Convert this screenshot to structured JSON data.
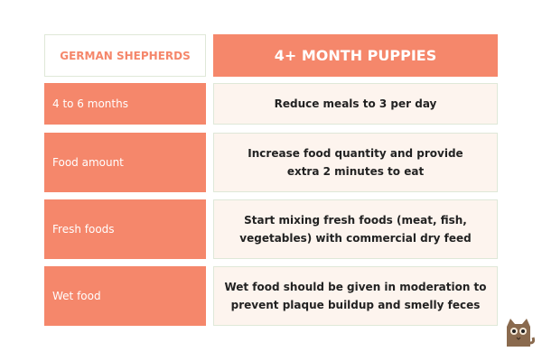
{
  "header": {
    "left": "GERMAN SHEPHERDS",
    "right": "4+ MONTH PUPPIES"
  },
  "rows": [
    {
      "label": "4 to 6 months",
      "text": [
        "Reduce meals to 3 per day"
      ]
    },
    {
      "label": "Food amount",
      "text": [
        "Increase food quantity and provide",
        "extra 2 minutes to eat"
      ]
    },
    {
      "label": "Fresh foods",
      "text": [
        "Start mixing fresh foods (meat, fish,",
        "vegetables) with commercial dry feed"
      ]
    },
    {
      "label": "Wet food",
      "text": [
        "Wet food should be given in moderation to",
        "prevent plaque buildup and smelly feces"
      ]
    }
  ]
}
